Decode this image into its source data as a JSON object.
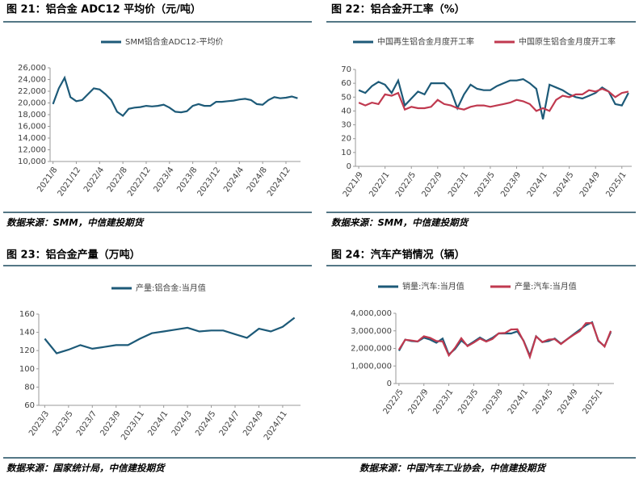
{
  "chart_data": [
    {
      "type": "line",
      "title": "图 21：铝合金 ADC12 平均价（元/吨）",
      "source": "数据来源：SMM，中信建投期货",
      "categories": [
        "2021/8",
        null,
        null,
        null,
        "2021/12",
        null,
        null,
        null,
        "2022/4",
        null,
        null,
        null,
        "2022/8",
        null,
        null,
        null,
        "2022/12",
        null,
        null,
        null,
        "2023/4",
        null,
        null,
        null,
        "2023/8",
        null,
        null,
        null,
        "2023/12",
        null,
        null,
        null,
        "2024/4",
        null,
        null,
        null,
        "2024/8",
        null,
        null,
        null,
        "2024/12",
        null,
        null
      ],
      "series": [
        {
          "name": "SMM铝合金ADC12-平均价",
          "color": "#1d5a78",
          "values": [
            19800,
            22500,
            24300,
            21000,
            20300,
            20500,
            21500,
            22500,
            22300,
            21500,
            20500,
            18500,
            17800,
            19000,
            19200,
            19300,
            19500,
            19400,
            19500,
            19700,
            19200,
            18500,
            18400,
            18600,
            19500,
            19800,
            19500,
            19500,
            20200,
            20200,
            20300,
            20400,
            20600,
            20700,
            20500,
            19800,
            19700,
            20500,
            21000,
            20800,
            20900,
            21100,
            20800
          ]
        }
      ],
      "ylim": [
        10000,
        26000
      ],
      "yticks": [
        {
          "value": 10000,
          "label": "10,000"
        },
        {
          "value": 12000,
          "label": "12,000"
        },
        {
          "value": 14000,
          "label": "14,000"
        },
        {
          "value": 16000,
          "label": "16,000"
        },
        {
          "value": 18000,
          "label": "18,000"
        },
        {
          "value": 20000,
          "label": "20,000"
        },
        {
          "value": 22000,
          "label": "22,000"
        },
        {
          "value": 24000,
          "label": "24,000"
        },
        {
          "value": 26000,
          "label": "26,000"
        }
      ]
    },
    {
      "type": "line",
      "title": "图 22：铝合金开工率（%）",
      "source": "数据来源：SMM，中信建投期货",
      "categories": [
        "2021/9",
        null,
        null,
        null,
        "2022/1",
        null,
        null,
        null,
        "2022/5",
        null,
        null,
        null,
        "2022/9",
        null,
        null,
        null,
        "2023/1",
        null,
        null,
        null,
        "2023/5",
        null,
        null,
        null,
        "2023/9",
        null,
        null,
        null,
        "2024/1",
        null,
        null,
        null,
        "2024/5",
        null,
        null,
        null,
        "2024/9",
        null,
        null,
        null,
        "2025/1",
        null
      ],
      "series": [
        {
          "name": "中国再生铝合金月度开工率",
          "color": "#1d5a78",
          "values": [
            55,
            53,
            58,
            61,
            59,
            53,
            62,
            44,
            49,
            54,
            52,
            60,
            60,
            60,
            55,
            42,
            52,
            59,
            56,
            55,
            55,
            58,
            60,
            62,
            62,
            63,
            60,
            56,
            34,
            59,
            57,
            55,
            52,
            50,
            49,
            51,
            53,
            57,
            54,
            45,
            44,
            53
          ]
        },
        {
          "name": "中国原生铝合金月度开工率",
          "color": "#c0394f",
          "values": [
            46,
            44,
            46,
            45,
            52,
            51,
            53,
            41,
            43,
            42,
            42,
            43,
            48,
            45,
            44,
            42,
            41,
            43,
            44,
            44,
            43,
            44,
            45,
            46,
            48,
            47,
            45,
            40,
            42,
            40,
            48,
            51,
            50,
            52,
            52,
            55,
            54,
            56,
            54,
            50,
            53,
            54
          ]
        }
      ],
      "ylim": [
        0,
        70
      ],
      "yticks": [
        0,
        10,
        20,
        30,
        40,
        50,
        60,
        70
      ]
    },
    {
      "type": "line",
      "title": "图 23：铝合金产量（万吨）",
      "source": "数据来源：国家统计局，中信建投期货",
      "categories": [
        "2023/3",
        null,
        "2023/5",
        null,
        "2023/7",
        null,
        "2023/9",
        null,
        "2023/11",
        null,
        "2024/1",
        null,
        "2024/3",
        null,
        "2024/5",
        null,
        "2024/7",
        null,
        "2024/9",
        null,
        "2024/11",
        null
      ],
      "series": [
        {
          "name": "产量:铝合金:当月值",
          "color": "#1d5a78",
          "values": [
            133,
            117,
            121,
            126,
            122,
            124,
            126,
            126,
            133,
            139,
            141,
            143,
            145,
            141,
            142,
            142,
            138,
            134,
            144,
            141,
            146,
            156
          ]
        }
      ],
      "ylim": [
        60,
        160
      ],
      "yticks": [
        60,
        80,
        100,
        120,
        140,
        160
      ]
    },
    {
      "type": "line",
      "title": "图 24：汽车产销情况（辆）",
      "source": "数据来源：中国汽车工业协会，中信建投期货",
      "categories": [
        "2022/5",
        null,
        null,
        null,
        "2022/9",
        null,
        null,
        null,
        "2023/1",
        null,
        null,
        null,
        "2023/5",
        null,
        null,
        null,
        "2023/9",
        null,
        null,
        null,
        "2024/1",
        null,
        null,
        null,
        "2024/5",
        null,
        null,
        null,
        "2024/9",
        null,
        null,
        null,
        "2025/1",
        null,
        null
      ],
      "series": [
        {
          "name": "销量:汽车:当月值",
          "color": "#1d5a78",
          "values": [
            1860000,
            2500000,
            2420000,
            2390000,
            2610000,
            2500000,
            2320000,
            2560000,
            1650000,
            1970000,
            2450000,
            2160000,
            2380000,
            2620000,
            2420000,
            2600000,
            2850000,
            2850000,
            2850000,
            2970000,
            2440000,
            1580000,
            2690000,
            2360000,
            2420000,
            2560000,
            2270000,
            2530000,
            2800000,
            3060000,
            3320000,
            3490000,
            2420000,
            2130000,
            2930000
          ]
        },
        {
          "name": "产量:汽车:当月值",
          "color": "#c0394f",
          "values": [
            1930000,
            2490000,
            2450000,
            2400000,
            2690000,
            2600000,
            2420000,
            2400000,
            1600000,
            2030000,
            2580000,
            2130000,
            2330000,
            2560000,
            2390000,
            2540000,
            2860000,
            2880000,
            3080000,
            3090000,
            2420000,
            1510000,
            2680000,
            2360000,
            2500000,
            2530000,
            2250000,
            2520000,
            2770000,
            2990000,
            3440000,
            3450000,
            2450000,
            2100000,
            3000000
          ]
        }
      ],
      "ylim": [
        0,
        4000000
      ],
      "yticks": [
        0,
        {
          "value": 1000000,
          "label": "1,000,000"
        },
        {
          "value": 2000000,
          "label": "2,000,000"
        },
        {
          "value": 3000000,
          "label": "3,000,000"
        },
        {
          "value": 4000000,
          "label": "4,000,000"
        }
      ]
    }
  ]
}
